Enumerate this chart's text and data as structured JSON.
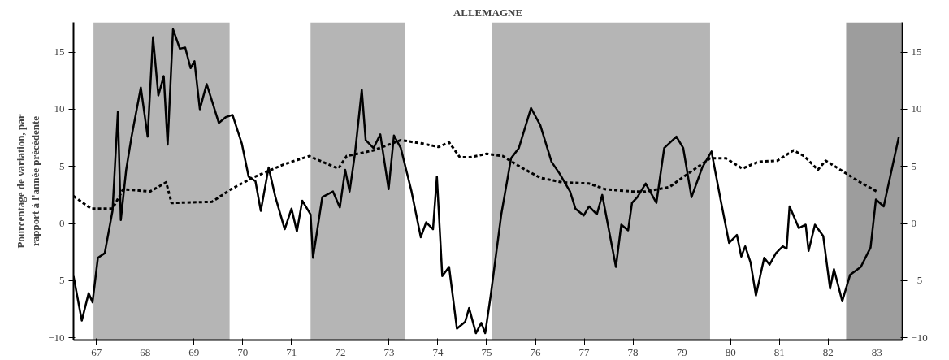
{
  "chart_data": {
    "type": "line",
    "title": "ALLEMAGNE",
    "ylabel": "Pourcentage de variation, par\nrapport à l'année précédente",
    "xlim": [
      66.53,
      83.52
    ],
    "ylim": [
      -10.2,
      17.6
    ],
    "y2lim": [
      -10.2,
      17.6
    ],
    "xticks": [
      67,
      68,
      69,
      70,
      71,
      72,
      73,
      74,
      75,
      76,
      77,
      78,
      79,
      80,
      81,
      82,
      83
    ],
    "yticks": [
      -10,
      -5,
      0,
      5,
      10,
      15
    ],
    "y2ticks": [
      -10,
      -5,
      0,
      5,
      10,
      15
    ],
    "grid": false,
    "bands": [
      {
        "axis": "x",
        "from": 66.94,
        "to": 69.73,
        "color": "#a8a8a8"
      },
      {
        "axis": "x",
        "from": 71.39,
        "to": 73.32,
        "color": "#a8a8a8"
      },
      {
        "axis": "x",
        "from": 75.11,
        "to": 79.58,
        "color": "#a8a8a8"
      },
      {
        "axis": "x",
        "from": 82.37,
        "to": 83.5,
        "color": "#8c8c8c"
      }
    ],
    "series": [
      {
        "color": "#000000",
        "line_style": "solid",
        "x": [
          66.53,
          66.7,
          66.84,
          66.92,
          67.03,
          67.17,
          67.33,
          67.44,
          67.5,
          67.61,
          67.72,
          67.91,
          68.05,
          68.16,
          68.27,
          68.38,
          68.46,
          68.57,
          68.71,
          68.82,
          68.93,
          69.01,
          69.12,
          69.26,
          69.51,
          69.65,
          69.79,
          69.98,
          70.12,
          70.26,
          70.37,
          70.53,
          70.67,
          70.86,
          71.0,
          71.11,
          71.22,
          71.39,
          71.44,
          71.63,
          71.85,
          71.99,
          72.1,
          72.19,
          72.3,
          72.44,
          72.52,
          72.68,
          72.82,
          72.99,
          73.1,
          73.24,
          73.46,
          73.65,
          73.76,
          73.9,
          73.98,
          74.09,
          74.23,
          74.39,
          74.56,
          74.64,
          74.78,
          74.89,
          74.97,
          75.08,
          75.3,
          75.5,
          75.66,
          75.91,
          76.1,
          76.33,
          76.49,
          76.71,
          76.82,
          76.99,
          77.1,
          77.26,
          77.37,
          77.65,
          77.76,
          77.9,
          77.98,
          78.09,
          78.26,
          78.48,
          78.64,
          78.89,
          79.03,
          79.2,
          79.42,
          79.61,
          79.8,
          79.97,
          80.13,
          80.22,
          80.3,
          80.41,
          80.52,
          80.69,
          80.8,
          80.93,
          81.07,
          81.15,
          81.21,
          81.4,
          81.54,
          81.6,
          81.73,
          81.9,
          82.04,
          82.12,
          82.29,
          82.45,
          82.67,
          82.87,
          82.98,
          83.14,
          83.45
        ],
        "values": [
          -4.6,
          -8.5,
          -6.1,
          -6.9,
          -3.0,
          -2.6,
          1.1,
          9.8,
          0.3,
          4.7,
          7.6,
          11.9,
          7.6,
          16.3,
          11.2,
          12.9,
          6.9,
          17.0,
          15.3,
          15.4,
          13.6,
          14.2,
          10.0,
          12.2,
          8.8,
          9.3,
          9.5,
          7.0,
          4.1,
          3.7,
          1.1,
          4.9,
          2.3,
          -0.5,
          1.3,
          -0.7,
          2.0,
          0.8,
          -3.0,
          2.3,
          2.8,
          1.4,
          4.7,
          2.8,
          6.1,
          11.7,
          7.3,
          6.6,
          7.8,
          3.0,
          7.7,
          6.6,
          2.8,
          -1.2,
          0.1,
          -0.5,
          4.1,
          -4.6,
          -3.8,
          -9.2,
          -8.6,
          -7.4,
          -9.6,
          -8.7,
          -9.6,
          -6.4,
          0.8,
          5.7,
          6.6,
          10.1,
          8.6,
          5.4,
          4.4,
          2.8,
          1.3,
          0.7,
          1.5,
          0.8,
          2.5,
          -3.8,
          -0.1,
          -0.6,
          1.8,
          2.3,
          3.5,
          1.8,
          6.6,
          7.6,
          6.6,
          2.3,
          4.9,
          6.3,
          2.0,
          -1.7,
          -1.0,
          -2.9,
          -2.0,
          -3.4,
          -6.3,
          -3.0,
          -3.6,
          -2.6,
          -2.0,
          -2.2,
          1.5,
          -0.4,
          -0.1,
          -2.4,
          -0.1,
          -1.1,
          -5.7,
          -4.0,
          -6.8,
          -4.5,
          -3.8,
          -2.1,
          2.1,
          1.5,
          7.6
        ]
      },
      {
        "color": "#000000",
        "line_style": "dashed",
        "x": [
          66.53,
          66.89,
          67.33,
          67.55,
          68.1,
          68.43,
          68.54,
          69.37,
          69.76,
          70.2,
          70.86,
          71.36,
          71.63,
          71.96,
          72.13,
          72.68,
          73.24,
          73.68,
          74.01,
          74.23,
          74.45,
          74.67,
          75.0,
          75.33,
          75.71,
          76.1,
          76.55,
          77.1,
          77.43,
          77.98,
          78.26,
          78.75,
          79.14,
          79.58,
          79.91,
          80.24,
          80.57,
          80.96,
          81.29,
          81.51,
          81.79,
          81.95,
          82.29,
          82.62,
          83.0
        ],
        "values": [
          2.4,
          1.3,
          1.3,
          3.0,
          2.8,
          3.6,
          1.8,
          1.9,
          3.0,
          4.0,
          5.2,
          5.9,
          5.4,
          4.8,
          5.9,
          6.4,
          7.3,
          7.0,
          6.7,
          7.1,
          5.8,
          5.8,
          6.1,
          5.9,
          4.9,
          4.0,
          3.6,
          3.5,
          3.0,
          2.8,
          2.8,
          3.2,
          4.4,
          5.7,
          5.7,
          4.8,
          5.4,
          5.5,
          6.4,
          5.9,
          4.7,
          5.5,
          4.6,
          3.7,
          2.8
        ]
      }
    ]
  }
}
